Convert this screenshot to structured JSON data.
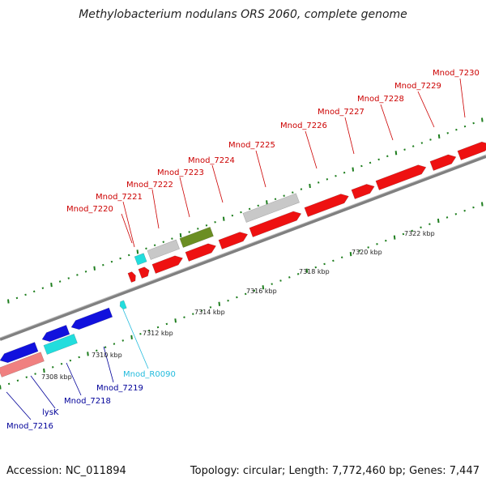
{
  "title": "Methylobacterium nodulans ORS 2060, complete genome",
  "accession_label": "Accession: NC_011894",
  "summary_label": "Topology: circular; Length: 7,772,460 bp; Genes: 7,447",
  "colors": {
    "forward_cds": "#ee1111",
    "reverse_cds": "#1111dd",
    "rna": "#22dddd",
    "pseudo": "#c8c8c8",
    "other": "#6b8e23",
    "pink": "#f08080",
    "tick": "#1e7e1e",
    "backbone": "#808080",
    "forward_label": "#cc0000",
    "reverse_label": "#000099",
    "rna_label": "#22bbdd"
  },
  "scale_labels": [
    "7308 kbp",
    "7310 kbp",
    "7312 kbp",
    "7314 kbp",
    "7316 kbp",
    "7318 kbp",
    "7320 kbp",
    "7322 kbp"
  ],
  "forward_gene_labels": [
    "Mnod_7220",
    "Mnod_7221",
    "Mnod_7222",
    "Mnod_7223",
    "Mnod_7224",
    "Mnod_7225",
    "Mnod_7226",
    "Mnod_7227",
    "Mnod_7228",
    "Mnod_7229",
    "Mnod_7230"
  ],
  "reverse_gene_labels": [
    "Mnod_R0090",
    "Mnod_7219",
    "Mnod_7218",
    "lysK",
    "Mnod_7216"
  ]
}
